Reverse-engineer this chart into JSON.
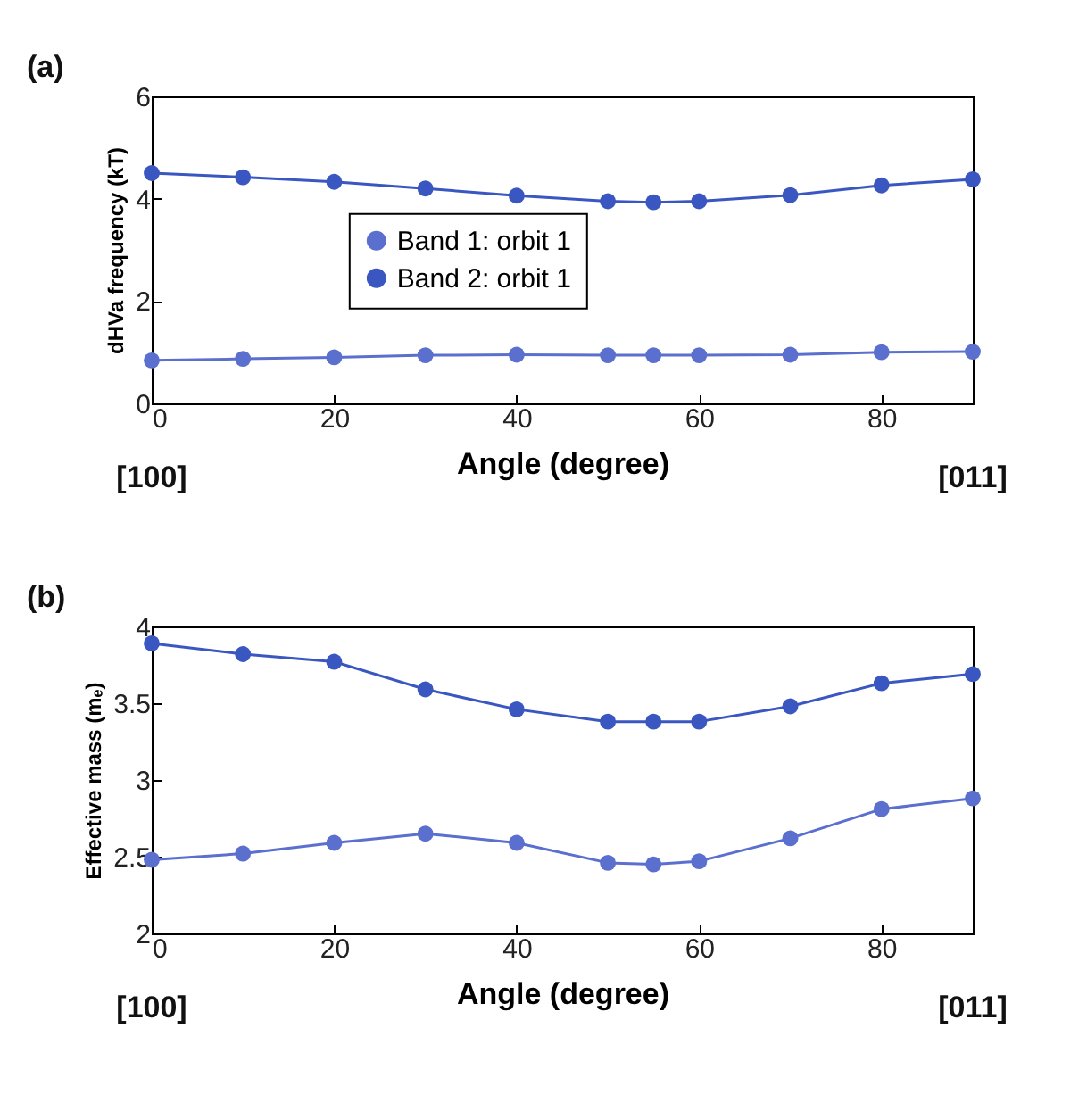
{
  "chart_data": [
    {
      "type": "line",
      "x": [
        0,
        10,
        20,
        30,
        40,
        50,
        55,
        60,
        70,
        80,
        90
      ],
      "xlabel": "Angle (degree)",
      "ylabel": "dHVa frequency (kT)",
      "xlim": [
        0,
        90
      ],
      "xticks": [
        0,
        20,
        40,
        60,
        80
      ],
      "ylim": [
        0,
        6
      ],
      "yticks": [
        0,
        2,
        4,
        6
      ],
      "marker": "circle",
      "legend": "center",
      "annotations": [
        "(a)",
        "[100]",
        "[011]"
      ],
      "series": [
        {
          "name": "Band 1: orbit 1",
          "color": "#5b6fcf",
          "values": [
            0.84,
            0.87,
            0.9,
            0.94,
            0.95,
            0.94,
            0.94,
            0.94,
            0.95,
            1.0,
            1.01
          ]
        },
        {
          "name": "Band 2: orbit 1",
          "color": "#3a56c0",
          "values": [
            4.5,
            4.42,
            4.33,
            4.2,
            4.06,
            3.95,
            3.93,
            3.95,
            4.07,
            4.26,
            4.38
          ]
        }
      ]
    },
    {
      "type": "line",
      "x": [
        0,
        10,
        20,
        30,
        40,
        50,
        55,
        60,
        70,
        80,
        90
      ],
      "xlabel": "Angle (degree)",
      "ylabel": "Effective mass (mₑ)",
      "xlim": [
        0,
        90
      ],
      "xticks": [
        0,
        20,
        40,
        60,
        80
      ],
      "ylim": [
        2,
        4
      ],
      "yticks": [
        2,
        2.5,
        3,
        3.5,
        4
      ],
      "marker": "circle",
      "annotations": [
        "(b)",
        "[100]",
        "[011]"
      ],
      "series": [
        {
          "color": "#5b6fcf",
          "values": [
            2.48,
            2.52,
            2.59,
            2.65,
            2.59,
            2.46,
            2.45,
            2.47,
            2.62,
            2.81,
            2.88
          ]
        },
        {
          "color": "#3a56c0",
          "values": [
            3.89,
            3.82,
            3.77,
            3.59,
            3.46,
            3.38,
            3.38,
            3.38,
            3.48,
            3.63,
            3.69
          ]
        }
      ]
    }
  ]
}
